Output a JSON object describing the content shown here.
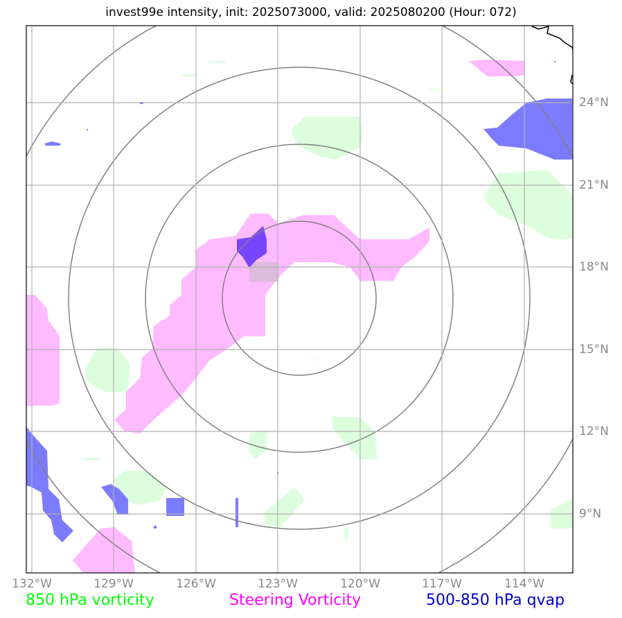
{
  "title": "invest99e intensity, init: 2025073000, valid: 2025080200 (Hour: 072)",
  "axes": {
    "lat_labels": [
      "24°N",
      "21°N",
      "18°N",
      "15°N",
      "12°N",
      "9°N"
    ],
    "lon_labels": [
      "132°W",
      "129°W",
      "126°W",
      "123°W",
      "120°W",
      "117°W",
      "114°W"
    ]
  },
  "legend": {
    "vort850": {
      "label": "850 hPa vorticity",
      "color": "#00ff00"
    },
    "steering": {
      "label": "Steering Vorticity",
      "color": "#ff00ff"
    },
    "qvap": {
      "label": "500-850 hPa qvap",
      "color": "#0000cc"
    }
  },
  "colors": {
    "vort850_fill": "#ddfedd",
    "steering_fill": "#ffbbff",
    "qvap_fill": "#7b7bff",
    "overlap_fill": "#7744ff",
    "range_rings": "#808080",
    "gridlines": "#b0b0b0",
    "coastline": "#000000"
  }
}
